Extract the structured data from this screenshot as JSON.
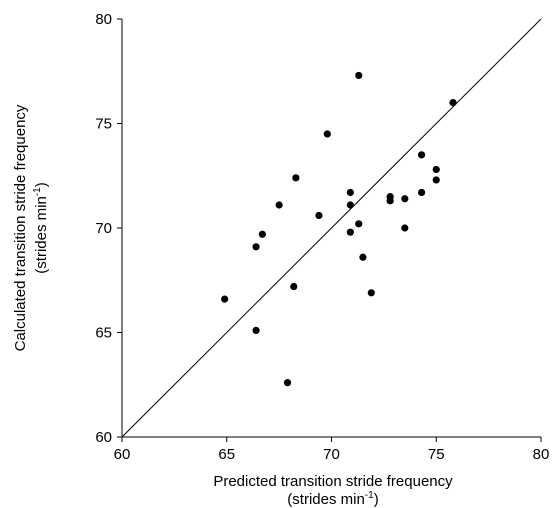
{
  "chart_data": {
    "type": "scatter",
    "title": "",
    "xlabel": {
      "line1": "Predicted transition stride frequency",
      "line2_prefix": "(strides min",
      "line2_sup": "-1",
      "line2_suffix": ")"
    },
    "ylabel": {
      "line1": "Calculated transition stride frequency",
      "line2_prefix": "(strides min",
      "line2_sup": "-1",
      "line2_suffix": ")"
    },
    "xlim": [
      60,
      80
    ],
    "ylim": [
      60,
      80
    ],
    "xticks": [
      60,
      65,
      70,
      75,
      80
    ],
    "yticks": [
      60,
      65,
      70,
      75,
      80
    ],
    "xtick_labels": [
      "60",
      "65",
      "70",
      "75",
      "80"
    ],
    "ytick_labels": [
      "60",
      "65",
      "70",
      "75",
      "80"
    ],
    "identity_line": true,
    "grid": false,
    "points": [
      {
        "x": 64.9,
        "y": 66.6
      },
      {
        "x": 66.4,
        "y": 65.1
      },
      {
        "x": 66.4,
        "y": 69.1
      },
      {
        "x": 66.7,
        "y": 69.7
      },
      {
        "x": 67.5,
        "y": 71.1
      },
      {
        "x": 67.9,
        "y": 62.6
      },
      {
        "x": 68.2,
        "y": 67.2
      },
      {
        "x": 68.3,
        "y": 72.4
      },
      {
        "x": 69.4,
        "y": 70.6
      },
      {
        "x": 69.8,
        "y": 74.5
      },
      {
        "x": 70.9,
        "y": 71.7
      },
      {
        "x": 70.9,
        "y": 71.1
      },
      {
        "x": 70.9,
        "y": 69.8
      },
      {
        "x": 71.3,
        "y": 77.3
      },
      {
        "x": 71.3,
        "y": 70.2
      },
      {
        "x": 71.5,
        "y": 68.6
      },
      {
        "x": 71.9,
        "y": 66.9
      },
      {
        "x": 72.8,
        "y": 71.5
      },
      {
        "x": 72.8,
        "y": 71.3
      },
      {
        "x": 73.5,
        "y": 71.4
      },
      {
        "x": 73.5,
        "y": 70.0
      },
      {
        "x": 74.3,
        "y": 73.5
      },
      {
        "x": 74.3,
        "y": 71.7
      },
      {
        "x": 75.0,
        "y": 72.8
      },
      {
        "x": 75.0,
        "y": 72.3
      },
      {
        "x": 75.8,
        "y": 76.0
      }
    ]
  }
}
